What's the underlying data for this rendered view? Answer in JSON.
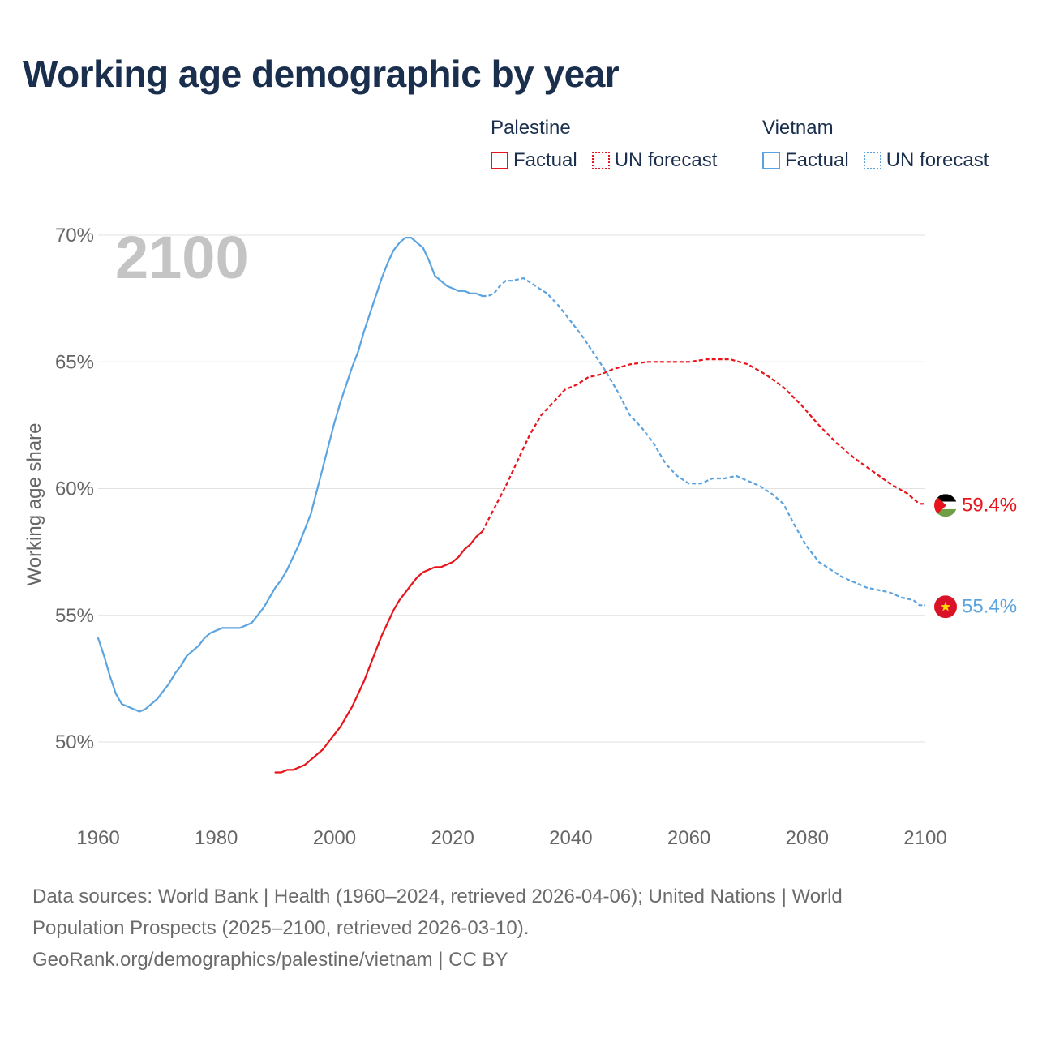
{
  "title": "Working age demographic by year",
  "legend": {
    "groups": [
      {
        "name": "Palestine",
        "color": "#e8141c",
        "factual_label": "Factual",
        "forecast_label": "UN forecast"
      },
      {
        "name": "Vietnam",
        "color": "#5ba4e0",
        "factual_label": "Factual",
        "forecast_label": "UN forecast"
      }
    ]
  },
  "footer": {
    "line1": "Data sources: World Bank | Health (1960–2024, retrieved 2026-04-06); United Nations | World",
    "line2": "Population Prospects (2025–2100, retrieved 2026-03-10).",
    "line3": "GeoRank.org/demographics/palestine/vietnam | CC BY"
  },
  "chart_data": {
    "type": "line",
    "title": "Working age demographic by year",
    "ylabel": "Working age share",
    "xlabel": "",
    "year_overlay": "2100",
    "xlim": [
      1960,
      2100
    ],
    "ylim": [
      47,
      70.5
    ],
    "x_ticks": [
      1960,
      1980,
      2000,
      2020,
      2040,
      2060,
      2080,
      2100
    ],
    "x_tick_labels": [
      "1960",
      "1980",
      "2000",
      "2020",
      "2040",
      "2060",
      "2080",
      "2100"
    ],
    "y_ticks": [
      50,
      55,
      60,
      65,
      70
    ],
    "y_tick_labels": [
      "50%",
      "55%",
      "60%",
      "65%",
      "70%"
    ],
    "grid": true,
    "series": [
      {
        "name": "Palestine",
        "color": "#e8141c",
        "end_label": "59.4%",
        "flag": "palestine-flag",
        "factual": {
          "x": [
            1990,
            1991,
            1992,
            1993,
            1994,
            1995,
            1996,
            1997,
            1998,
            1999,
            2000,
            2001,
            2002,
            2003,
            2004,
            2005,
            2006,
            2007,
            2008,
            2009,
            2010,
            2011,
            2012,
            2013,
            2014,
            2015,
            2016,
            2017,
            2018,
            2019,
            2020,
            2021,
            2022,
            2023,
            2024,
            2025
          ],
          "y": [
            48.8,
            48.8,
            48.9,
            48.9,
            49.0,
            49.1,
            49.3,
            49.5,
            49.7,
            50.0,
            50.3,
            50.6,
            51.0,
            51.4,
            51.9,
            52.4,
            53.0,
            53.6,
            54.2,
            54.7,
            55.2,
            55.6,
            55.9,
            56.2,
            56.5,
            56.7,
            56.8,
            56.9,
            56.9,
            57.0,
            57.1,
            57.3,
            57.6,
            57.8,
            58.1,
            58.3
          ]
        },
        "forecast": {
          "x": [
            2025,
            2027,
            2029,
            2031,
            2033,
            2035,
            2037,
            2039,
            2041,
            2043,
            2045,
            2047,
            2050,
            2053,
            2056,
            2060,
            2063,
            2067,
            2070,
            2073,
            2076,
            2079,
            2082,
            2085,
            2088,
            2091,
            2094,
            2097,
            2099,
            2100
          ],
          "y": [
            58.3,
            59.2,
            60.1,
            61.1,
            62.1,
            62.9,
            63.4,
            63.9,
            64.1,
            64.4,
            64.5,
            64.7,
            64.9,
            65.0,
            65.0,
            65.0,
            65.1,
            65.1,
            64.9,
            64.5,
            64.0,
            63.3,
            62.5,
            61.8,
            61.2,
            60.7,
            60.2,
            59.8,
            59.4,
            59.4
          ]
        }
      },
      {
        "name": "Vietnam",
        "color": "#5ba4e0",
        "end_label": "55.4%",
        "flag": "vietnam-flag",
        "factual": {
          "x": [
            1960,
            1961,
            1962,
            1963,
            1964,
            1965,
            1966,
            1967,
            1968,
            1969,
            1970,
            1971,
            1972,
            1973,
            1974,
            1975,
            1976,
            1977,
            1978,
            1979,
            1980,
            1981,
            1982,
            1983,
            1984,
            1985,
            1986,
            1987,
            1988,
            1989,
            1990,
            1991,
            1992,
            1993,
            1994,
            1995,
            1996,
            1997,
            1998,
            1999,
            2000,
            2001,
            2002,
            2003,
            2004,
            2005,
            2006,
            2007,
            2008,
            2009,
            2010,
            2011,
            2012,
            2013,
            2014,
            2015,
            2016,
            2017,
            2018,
            2019,
            2020,
            2021,
            2022,
            2023,
            2024,
            2025
          ],
          "y": [
            54.1,
            53.4,
            52.6,
            51.9,
            51.5,
            51.4,
            51.3,
            51.2,
            51.3,
            51.5,
            51.7,
            52.0,
            52.3,
            52.7,
            53.0,
            53.4,
            53.6,
            53.8,
            54.1,
            54.3,
            54.4,
            54.5,
            54.5,
            54.5,
            54.5,
            54.6,
            54.7,
            55.0,
            55.3,
            55.7,
            56.1,
            56.4,
            56.8,
            57.3,
            57.8,
            58.4,
            59.0,
            59.9,
            60.8,
            61.7,
            62.6,
            63.4,
            64.1,
            64.8,
            65.4,
            66.2,
            66.9,
            67.6,
            68.3,
            68.9,
            69.4,
            69.7,
            69.9,
            69.9,
            69.7,
            69.5,
            69.0,
            68.4,
            68.2,
            68.0,
            67.9,
            67.8,
            67.8,
            67.7,
            67.7,
            67.6
          ]
        },
        "forecast": {
          "x": [
            2025,
            2026,
            2027,
            2028,
            2029,
            2030,
            2032,
            2034,
            2036,
            2038,
            2040,
            2042,
            2044,
            2046,
            2048,
            2050,
            2052,
            2054,
            2056,
            2058,
            2060,
            2062,
            2064,
            2066,
            2068,
            2070,
            2072,
            2074,
            2076,
            2078,
            2080,
            2082,
            2084,
            2086,
            2088,
            2090,
            2092,
            2094,
            2096,
            2098,
            2099,
            2100
          ],
          "y": [
            67.6,
            67.6,
            67.7,
            68.0,
            68.2,
            68.2,
            68.3,
            68.0,
            67.7,
            67.2,
            66.6,
            66.0,
            65.3,
            64.6,
            63.8,
            62.9,
            62.4,
            61.8,
            61.0,
            60.5,
            60.2,
            60.2,
            60.4,
            60.4,
            60.5,
            60.3,
            60.1,
            59.8,
            59.4,
            58.5,
            57.7,
            57.1,
            56.8,
            56.5,
            56.3,
            56.1,
            56.0,
            55.9,
            55.7,
            55.6,
            55.4,
            55.4
          ]
        }
      }
    ]
  }
}
